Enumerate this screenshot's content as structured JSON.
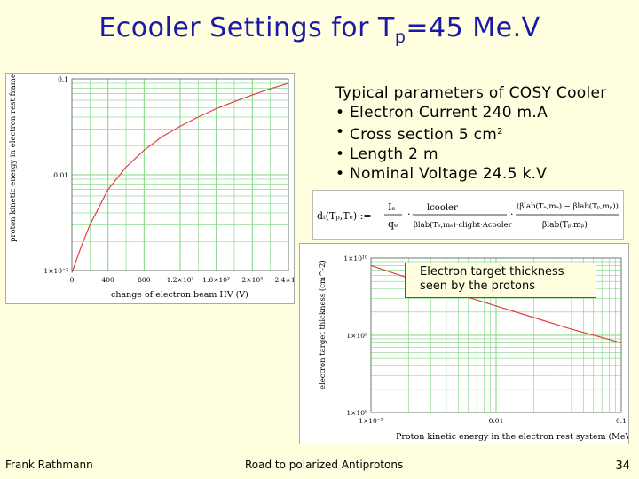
{
  "slide": {
    "title_prefix": "Ecooler Settings for T",
    "title_subscript": "p",
    "title_suffix": "=45 Me.V"
  },
  "params": {
    "heading": "Typical parameters of COSY Cooler",
    "bullet_symbol": "•",
    "items": [
      {
        "text": "Electron Current 240 m.A"
      },
      {
        "text": "Cross section 5 cm",
        "sup": "2"
      },
      {
        "text": "Length 2 m"
      },
      {
        "text": "Nominal Voltage 24.5 k.V"
      }
    ]
  },
  "formula": {
    "lhs": "dₜ(Tₚ,Tₑ) :=",
    "frac1_num": "Iₑ",
    "frac1_den": "qₑ",
    "frac2_num": "lcooler",
    "frac2_den": "βlab(Tₑ,mₑ)·clight·Acooler",
    "frac3_num": "(βlab(Tₑ,mₑ) − βlab(Tₚ,mₚ))",
    "frac3_den": "βlab(Tₚ,mₚ)"
  },
  "plot1": {
    "ylabel": "proton kinetic energy in electron rest frame (MeV)",
    "xlabel": "change of electron beam HV (V)",
    "y_ticks": [
      "0.1",
      "0.01",
      "1×10⁻³"
    ],
    "x_ticks": [
      "0",
      "400",
      "800",
      "1.2×10³",
      "1.6×10³",
      "2×10³",
      "2.4×10³"
    ],
    "line_color": "#e04040",
    "grid_color": "#7fd67f",
    "chart_data": {
      "type": "line",
      "x": [
        0,
        100,
        200,
        400,
        600,
        800,
        1000,
        1200,
        1400,
        1600,
        1800,
        2000,
        2200,
        2400
      ],
      "y": [
        0.00095,
        0.00175,
        0.003,
        0.007,
        0.012,
        0.018,
        0.025,
        0.032,
        0.04,
        0.049,
        0.058,
        0.068,
        0.079,
        0.09
      ],
      "xlim": [
        0,
        2400
      ],
      "ylim": [
        0.001,
        0.1
      ],
      "yscale": "log",
      "grid": true
    }
  },
  "plot2": {
    "ylabel": "electron target thickness (cm^-2)",
    "xlabel": "Proton kinetic energy in the electron rest system (MeV)",
    "y_ticks": [
      "1×10¹⁰",
      "1×10⁹",
      "1×10⁸"
    ],
    "x_ticks": [
      "1×10⁻³",
      "0.01",
      "0.1"
    ],
    "caption_line1": "Electron target thickness",
    "caption_line2": "seen by the protons",
    "line_color": "#e04040",
    "grid_color": "#7fd67f",
    "chart_data": {
      "type": "line",
      "x": [
        0.001,
        0.002,
        0.004,
        0.01,
        0.02,
        0.04,
        0.1
      ],
      "y": [
        8000000000.0,
        5500000000.0,
        3800000000.0,
        2400000000.0,
        1700000000.0,
        1200000000.0,
        800000000.0
      ],
      "xscale": "log",
      "yscale": "log",
      "xlim": [
        0.001,
        0.1
      ],
      "ylim": [
        100000000.0,
        10000000000.0
      ],
      "grid": true
    }
  },
  "footer": {
    "author": "Frank Rathmann",
    "talk": "Road to polarized Antiprotons",
    "page": "34"
  }
}
